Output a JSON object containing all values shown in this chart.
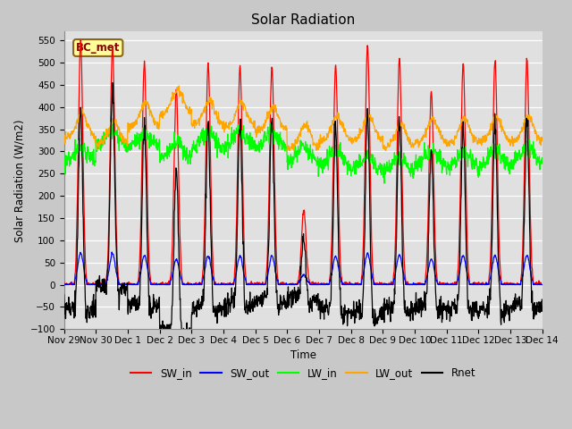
{
  "title": "Solar Radiation",
  "ylabel": "Solar Radiation (W/m2)",
  "xlabel": "Time",
  "ylim": [
    -100,
    570
  ],
  "yticks": [
    -100,
    -50,
    0,
    50,
    100,
    150,
    200,
    250,
    300,
    350,
    400,
    450,
    500,
    550
  ],
  "xlim_days": [
    0,
    15.0
  ],
  "xtick_positions": [
    0,
    1,
    2,
    3,
    4,
    5,
    6,
    7,
    8,
    9,
    10,
    11,
    12,
    13,
    14,
    15
  ],
  "xtick_labels": [
    "Nov 29",
    "Nov 30",
    "Dec 1",
    "Dec 2",
    "Dec 3",
    "Dec 4",
    "Dec 5",
    "Dec 6",
    "Dec 7",
    "Dec 8",
    "Dec 9",
    "Dec 10",
    "Dec 11",
    "Dec 12",
    "Dec 13",
    "Dec 14"
  ],
  "legend_label": "BC_met",
  "legend_box_color": "#FFFF99",
  "legend_box_edge": "#8B6914",
  "series_names": [
    "SW_in",
    "SW_out",
    "LW_in",
    "LW_out",
    "Rnet"
  ],
  "series_colors": [
    "red",
    "blue",
    "lime",
    "orange",
    "black"
  ],
  "fig_bg_color": "#C8C8C8",
  "plot_bg_color": "#E0E0E0",
  "grid_color": "#BBBBBB",
  "n_days": 15,
  "dt_hours": 0.25,
  "peak_vals_SW_in": [
    545,
    535,
    500,
    440,
    498,
    492,
    492,
    170,
    492,
    540,
    512,
    435,
    500,
    505,
    508
  ],
  "base_LW_in": [
    275,
    310,
    305,
    285,
    305,
    310,
    305,
    275,
    265,
    255,
    252,
    263,
    263,
    268,
    272
  ],
  "base_LW_out": [
    330,
    315,
    355,
    385,
    360,
    355,
    345,
    305,
    325,
    325,
    308,
    318,
    318,
    322,
    322
  ]
}
